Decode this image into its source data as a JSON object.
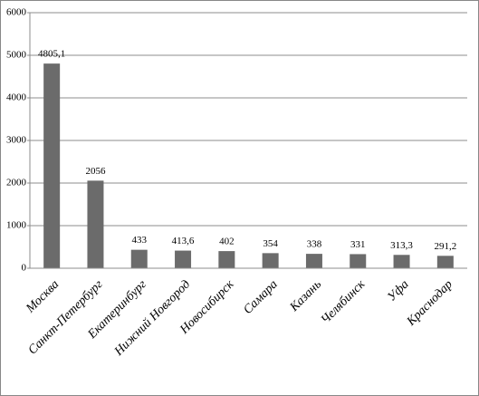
{
  "chart_data": {
    "type": "bar",
    "categories": [
      "Москва",
      "Санкт-Петербург",
      "Екатеринбург",
      "Нижний Новгород",
      "Новосибирск",
      "Самара",
      "Казань",
      "Челябинск",
      "Уфа",
      "Краснодар"
    ],
    "values": [
      4805.1,
      2056,
      433,
      413.6,
      402,
      354,
      338,
      331,
      313.3,
      291.2
    ],
    "value_labels": [
      "4805,1",
      "2056",
      "433",
      "413,6",
      "402",
      "354",
      "338",
      "331",
      "313,3",
      "291,2"
    ],
    "color": "#6b6b6b",
    "ylim": [
      0,
      6000
    ],
    "yticks": [
      0,
      1000,
      2000,
      3000,
      4000,
      5000,
      6000
    ],
    "grid": true
  }
}
